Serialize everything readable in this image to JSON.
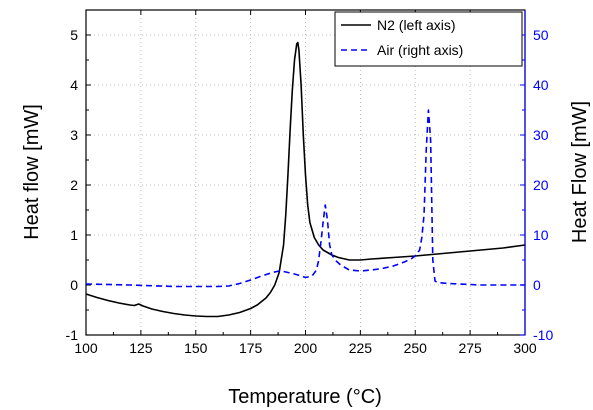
{
  "chart_data": {
    "type": "line",
    "xlabel": "Temperature (°C)",
    "ylabel_left": "Heat flow [mW]",
    "ylabel_right": "Heat Flow [mW]",
    "xlim": [
      100,
      300
    ],
    "ylim_left": [
      -1,
      5.5
    ],
    "ylim_right": [
      -10,
      55
    ],
    "x_ticks": [
      100,
      125,
      150,
      175,
      200,
      225,
      250,
      275,
      300
    ],
    "y_left_ticks": [
      -1,
      0,
      1,
      2,
      3,
      4,
      5
    ],
    "y_right_ticks": [
      -10,
      0,
      10,
      20,
      30,
      40,
      50
    ],
    "grid": true,
    "legend_position": "top-right",
    "right_axis_color": "#0000ff",
    "series": [
      {
        "name": "N2 (left axis)",
        "axis": "left",
        "color": "#000000",
        "style": "solid",
        "x": [
          100,
          105,
          110,
          115,
          120,
          122,
          124,
          126,
          128,
          130,
          135,
          140,
          145,
          150,
          155,
          160,
          165,
          170,
          175,
          178,
          180,
          182,
          184,
          186,
          188,
          190,
          191,
          192,
          193,
          194,
          195,
          196,
          196.5,
          197,
          198,
          199,
          200,
          201,
          202,
          204,
          206,
          208,
          210,
          212,
          215,
          218,
          220,
          225,
          230,
          240,
          250,
          260,
          270,
          280,
          290,
          300
        ],
        "y": [
          -0.18,
          -0.25,
          -0.31,
          -0.36,
          -0.4,
          -0.41,
          -0.38,
          -0.42,
          -0.45,
          -0.48,
          -0.53,
          -0.57,
          -0.6,
          -0.62,
          -0.63,
          -0.63,
          -0.6,
          -0.55,
          -0.47,
          -0.4,
          -0.33,
          -0.26,
          -0.15,
          0.0,
          0.25,
          0.8,
          1.4,
          2.2,
          3.1,
          3.9,
          4.5,
          4.82,
          4.85,
          4.7,
          4.0,
          3.0,
          2.2,
          1.6,
          1.25,
          0.95,
          0.8,
          0.7,
          0.65,
          0.6,
          0.55,
          0.52,
          0.5,
          0.5,
          0.52,
          0.55,
          0.58,
          0.62,
          0.66,
          0.7,
          0.74,
          0.8
        ]
      },
      {
        "name": "Air (right axis)",
        "axis": "right",
        "color": "#0000ff",
        "style": "dashed",
        "x": [
          100,
          120,
          140,
          150,
          160,
          165,
          170,
          175,
          180,
          185,
          188,
          190,
          192,
          195,
          198,
          200,
          203,
          205,
          206,
          207,
          208,
          209,
          210,
          211,
          212,
          214,
          216,
          218,
          220,
          225,
          230,
          235,
          240,
          245,
          248,
          250,
          252,
          253,
          254,
          255,
          256,
          257,
          258,
          259,
          260,
          265,
          270,
          275,
          280,
          290,
          300
        ],
        "y": [
          0.2,
          0.0,
          -0.3,
          -0.3,
          -0.3,
          -0.2,
          0.3,
          1.0,
          1.8,
          2.5,
          2.8,
          2.7,
          2.5,
          2.2,
          1.8,
          1.5,
          1.8,
          3.0,
          5.0,
          8.5,
          12.5,
          16.0,
          13.0,
          8.0,
          6.0,
          4.8,
          4.0,
          3.5,
          3.0,
          2.8,
          3.0,
          3.3,
          3.8,
          4.6,
          5.2,
          5.8,
          7.0,
          9.5,
          14.0,
          27.0,
          35.0,
          29.0,
          5.0,
          0.8,
          0.5,
          0.3,
          0.2,
          0.1,
          0.0,
          0.0,
          0.0
        ]
      }
    ]
  }
}
